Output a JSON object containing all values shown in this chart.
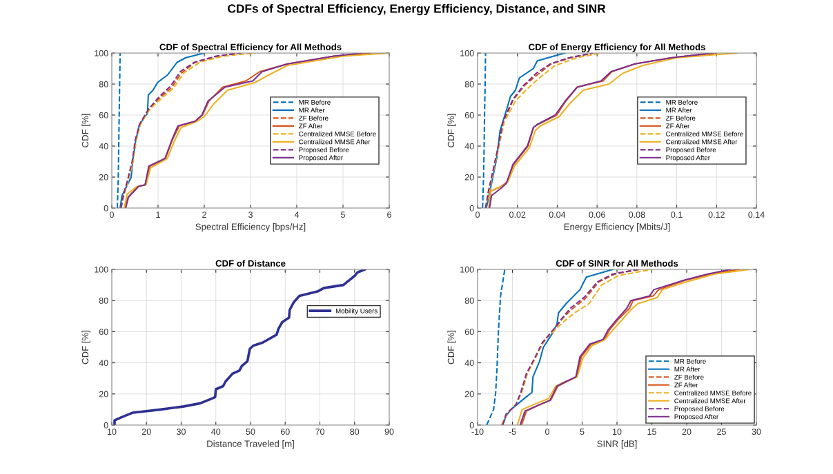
{
  "chart_data": [
    {
      "type": "line",
      "title": "CDF of Spectral Efficiency for All Methods",
      "xlabel": "Spectral Efficiency [bps/Hz]",
      "ylabel": "CDF [%]",
      "annotations": [
        "CDFs of Spectral Efficiency, Energy Efficiency, Distance, and SINR"
      ],
      "xlim": [
        0,
        6
      ],
      "xticks": [
        0,
        1,
        2,
        3,
        4,
        5,
        6
      ],
      "ylim": [
        0,
        100
      ],
      "yticks": [
        0,
        20,
        40,
        60,
        80,
        100
      ],
      "grid": true,
      "legend": "right",
      "series": [
        {
          "name": "MR Before",
          "color": "#0072bd",
          "line_style": "dashed",
          "x": [
            0.12,
            0.14,
            0.15,
            0.16,
            0.17,
            0.18
          ],
          "values": [
            0,
            20,
            40,
            60,
            80,
            100
          ]
        },
        {
          "name": "MR After",
          "color": "#0072bd",
          "line_style": "solid",
          "x": [
            0.18,
            0.22,
            0.32,
            0.42,
            0.45,
            0.52,
            0.6,
            0.77,
            0.79,
            0.89,
            0.99,
            1.21,
            1.31,
            1.41,
            1.6,
            2.0
          ],
          "values": [
            0,
            8,
            14,
            20,
            30,
            44,
            54,
            61,
            73,
            76,
            81,
            86,
            90,
            94,
            97,
            100
          ]
        },
        {
          "name": "ZF Before",
          "color": "#d95319",
          "line_style": "dashed",
          "x": [
            0.2,
            0.25,
            0.35,
            0.45,
            0.52,
            0.6,
            0.8,
            1.0,
            1.3,
            1.5,
            1.8,
            2.3,
            2.7
          ],
          "values": [
            0,
            8,
            18,
            30,
            44,
            54,
            64,
            70,
            78,
            87,
            94,
            98,
            100
          ]
        },
        {
          "name": "ZF After",
          "color": "#d95319",
          "line_style": "solid",
          "x": [
            0.28,
            0.35,
            0.57,
            0.72,
            0.82,
            1.16,
            1.31,
            1.46,
            1.81,
            1.96,
            2.1,
            2.4,
            2.9,
            3.2,
            3.8,
            4.8,
            5.6
          ],
          "values": [
            0,
            7,
            14,
            15,
            27,
            32,
            44,
            53,
            56,
            60,
            69,
            78,
            82,
            88,
            93,
            98,
            100
          ]
        },
        {
          "name": "Centralized MMSE Before",
          "color": "#edb120",
          "line_style": "dashed",
          "x": [
            0.2,
            0.26,
            0.36,
            0.46,
            0.53,
            0.62,
            0.83,
            1.05,
            1.35,
            1.55,
            1.9,
            2.4,
            3.1
          ],
          "values": [
            0,
            8,
            18,
            30,
            44,
            54,
            64,
            70,
            78,
            87,
            94,
            98,
            100
          ]
        },
        {
          "name": "Centralized MMSE After",
          "color": "#edb120",
          "line_style": "solid",
          "x": [
            0.27,
            0.33,
            0.55,
            0.74,
            0.84,
            1.2,
            1.35,
            1.5,
            1.85,
            2.0,
            2.2,
            2.5,
            3.1,
            3.4,
            3.8,
            5.0,
            6.0
          ],
          "values": [
            0,
            9,
            14,
            15,
            26,
            32,
            43,
            52,
            56,
            59,
            67,
            76,
            81,
            86,
            92,
            98,
            100
          ]
        },
        {
          "name": "Proposed Before",
          "color": "#7e2f8e",
          "line_style": "dashed",
          "x": [
            0.2,
            0.25,
            0.34,
            0.44,
            0.51,
            0.6,
            0.8,
            1.0,
            1.28,
            1.48,
            1.78,
            2.25,
            2.8
          ],
          "values": [
            0,
            8,
            18,
            30,
            44,
            54,
            64,
            71,
            79,
            88,
            94,
            98,
            100
          ]
        },
        {
          "name": "Proposed After",
          "color": "#7e2f8e",
          "line_style": "solid",
          "x": [
            0.3,
            0.36,
            0.58,
            0.72,
            0.8,
            1.15,
            1.3,
            1.43,
            1.8,
            1.95,
            2.08,
            2.45,
            3.05,
            3.25,
            3.8,
            4.8,
            5.4
          ],
          "values": [
            0,
            7,
            14,
            15,
            27,
            32,
            44,
            53,
            56,
            60,
            69,
            78,
            82,
            88,
            93,
            98,
            100
          ]
        }
      ]
    },
    {
      "type": "line",
      "title": "CDF of Energy Efficiency for All Methods",
      "xlabel": "Energy Efficiency [Mbits/J]",
      "ylabel": "CDF [%]",
      "xlim": [
        0,
        0.14
      ],
      "xticks": [
        0,
        0.02,
        0.04,
        0.06,
        0.08,
        0.1,
        0.12,
        0.14
      ],
      "ylim": [
        0,
        100
      ],
      "yticks": [
        0,
        20,
        40,
        60,
        80,
        100
      ],
      "grid": true,
      "legend": "right",
      "series": [
        {
          "name": "MR Before",
          "color": "#0072bd",
          "line_style": "dashed",
          "x": [
            0.0025,
            0.003,
            0.0033,
            0.0035,
            0.0038,
            0.004
          ],
          "values": [
            0,
            20,
            40,
            60,
            80,
            100
          ]
        },
        {
          "name": "MR After",
          "color": "#0072bd",
          "line_style": "solid",
          "x": [
            0.0044,
            0.0067,
            0.0096,
            0.0113,
            0.0142,
            0.0165,
            0.019,
            0.021,
            0.028,
            0.03,
            0.0437
          ],
          "values": [
            0,
            14,
            32,
            50,
            62,
            72,
            76,
            84,
            90,
            95,
            100
          ]
        },
        {
          "name": "ZF Before",
          "color": "#d95319",
          "line_style": "dashed",
          "x": [
            0.004,
            0.0055,
            0.008,
            0.0105,
            0.013,
            0.018,
            0.0235,
            0.03,
            0.037,
            0.047,
            0.058
          ],
          "values": [
            0,
            10,
            25,
            40,
            56,
            70,
            79,
            86,
            93,
            97,
            100
          ]
        },
        {
          "name": "ZF After",
          "color": "#d95319",
          "line_style": "solid",
          "x": [
            0.0058,
            0.0067,
            0.012,
            0.0148,
            0.018,
            0.0253,
            0.0281,
            0.0304,
            0.0397,
            0.0443,
            0.05,
            0.063,
            0.0674,
            0.079,
            0.0975,
            0.12
          ],
          "values": [
            0,
            11,
            14,
            17,
            28,
            40,
            52,
            54,
            60,
            69,
            78,
            82,
            88,
            93,
            97,
            100
          ]
        },
        {
          "name": "Centralized MMSE Before",
          "color": "#edb120",
          "line_style": "dashed",
          "x": [
            0.004,
            0.0057,
            0.0082,
            0.0108,
            0.0135,
            0.019,
            0.025,
            0.032,
            0.039,
            0.05,
            0.062
          ],
          "values": [
            0,
            10,
            25,
            40,
            56,
            69,
            77,
            85,
            92,
            97,
            100
          ]
        },
        {
          "name": "Centralized MMSE After",
          "color": "#edb120",
          "line_style": "solid",
          "x": [
            0.0056,
            0.0065,
            0.0125,
            0.0152,
            0.0185,
            0.026,
            0.029,
            0.0315,
            0.041,
            0.046,
            0.053,
            0.066,
            0.073,
            0.083,
            0.1,
            0.13
          ],
          "values": [
            0,
            11,
            14,
            17,
            27,
            39,
            50,
            53,
            59,
            67,
            76,
            80,
            87,
            92,
            97,
            100
          ]
        },
        {
          "name": "Proposed Before",
          "color": "#7e2f8e",
          "line_style": "dashed",
          "x": [
            0.004,
            0.0053,
            0.0079,
            0.0104,
            0.0128,
            0.0177,
            0.023,
            0.0295,
            0.0365,
            0.046,
            0.058
          ],
          "values": [
            0,
            10,
            25,
            40,
            56,
            70,
            79,
            87,
            93,
            97,
            100
          ]
        },
        {
          "name": "Proposed After",
          "color": "#7e2f8e",
          "line_style": "solid",
          "x": [
            0.006,
            0.007,
            0.012,
            0.0145,
            0.0177,
            0.025,
            0.028,
            0.03,
            0.039,
            0.044,
            0.05,
            0.062,
            0.067,
            0.079,
            0.0975,
            0.118
          ],
          "values": [
            0,
            8,
            13,
            16,
            28,
            40,
            52,
            54,
            60,
            69,
            78,
            82,
            88,
            93,
            97,
            100
          ]
        }
      ]
    },
    {
      "type": "line",
      "title": "CDF of Distance",
      "xlabel": "Distance Traveled [m]",
      "ylabel": "CDF [%]",
      "xlim": [
        10,
        90
      ],
      "xticks": [
        10,
        20,
        30,
        40,
        50,
        60,
        70,
        80,
        90
      ],
      "ylim": [
        0,
        100
      ],
      "yticks": [
        0,
        20,
        40,
        60,
        80,
        100
      ],
      "grid": true,
      "legend": "top right",
      "series": [
        {
          "name": "Mobility Users",
          "color": "#2e3192",
          "line_style": "solid",
          "x": [
            10.8,
            10.8,
            12.8,
            16.1,
            24.1,
            30.8,
            35.5,
            38.8,
            39.8,
            40,
            42.1,
            42.8,
            44.8,
            46.8,
            47.5,
            49.1,
            49.8,
            50.8,
            53.5,
            57.5,
            58.1,
            59.1,
            61.1,
            61.3,
            62.5,
            64.1,
            69.5,
            71.1,
            76.8,
            80.1,
            80.8,
            83
          ],
          "values": [
            0,
            3,
            5,
            8,
            10,
            12,
            14,
            17,
            18,
            23,
            25,
            28,
            33,
            35,
            38,
            41,
            49,
            51,
            53,
            58,
            62,
            66,
            69,
            74,
            79,
            83,
            86,
            88,
            90,
            96,
            98,
            100
          ]
        }
      ]
    },
    {
      "type": "line",
      "title": "CDF of SINR for All Methods",
      "xlabel": "SINR [dB]",
      "ylabel": "CDF [%]",
      "xlim": [
        -10,
        30
      ],
      "xticks": [
        -10,
        -5,
        0,
        5,
        10,
        15,
        20,
        25,
        30
      ],
      "ylim": [
        0,
        100
      ],
      "yticks": [
        0,
        20,
        40,
        60,
        80,
        100
      ],
      "grid": true,
      "legend": "bottom right",
      "series": [
        {
          "name": "MR Before",
          "color": "#0072bd",
          "line_style": "dashed",
          "x": [
            -8.7,
            -7.7,
            -7.4,
            -7.2,
            -7.0,
            -6.7,
            -6.1
          ],
          "values": [
            0,
            10,
            21,
            38,
            61,
            83,
            100
          ]
        },
        {
          "name": "MR After",
          "color": "#0072bd",
          "line_style": "solid",
          "x": [
            -6.4,
            -5.9,
            -5.2,
            -3.6,
            -2.2,
            -2.05,
            -1.1,
            -0.56,
            0.6,
            1.4,
            1.6,
            2.7,
            4.7,
            5.6,
            9.4
          ],
          "values": [
            0,
            6,
            10,
            16,
            21,
            31,
            41,
            50,
            58,
            65,
            72,
            78,
            87,
            95,
            100
          ]
        },
        {
          "name": "ZF Before",
          "color": "#d95319",
          "line_style": "dashed",
          "x": [
            -6.5,
            -5.9,
            -4.5,
            -3.7,
            -2.9,
            -1.6,
            -0.6,
            1.1,
            2.1,
            3.4,
            5.4,
            7.4,
            9.7,
            13.3
          ],
          "values": [
            0,
            7,
            13,
            21,
            33,
            44,
            53,
            62,
            68,
            74,
            81,
            92,
            97,
            100
          ]
        },
        {
          "name": "ZF After",
          "color": "#d95319",
          "line_style": "solid",
          "x": [
            -3.7,
            -3.0,
            -1.1,
            0.5,
            1.5,
            2.8,
            4.2,
            4.9,
            6.3,
            8.2,
            8.9,
            10.2,
            11.8,
            12.3,
            15.2,
            16.0,
            19.8,
            23.5,
            27.5
          ],
          "values": [
            0,
            9,
            13,
            16,
            25,
            28,
            31,
            44,
            52,
            55,
            61,
            68,
            75,
            80,
            83,
            87,
            93,
            97,
            100
          ]
        },
        {
          "name": "Centralized MMSE Before",
          "color": "#edb120",
          "line_style": "dashed",
          "x": [
            -6.6,
            -5.8,
            -4.4,
            -3.6,
            -2.8,
            -1.5,
            -0.5,
            1.3,
            2.5,
            3.9,
            6.0,
            7.8,
            10.2,
            15
          ],
          "values": [
            0,
            7,
            14,
            22,
            34,
            45,
            54,
            62,
            67,
            72,
            78,
            90,
            96,
            100
          ]
        },
        {
          "name": "Centralized MMSE After",
          "color": "#edb120",
          "line_style": "solid",
          "x": [
            -4.3,
            -3.6,
            -1.5,
            0.2,
            1.2,
            2.6,
            4.3,
            5.1,
            6.4,
            8.3,
            9.2,
            10.6,
            12.0,
            13.0,
            15.8,
            16.5,
            20.0,
            24.0,
            29
          ],
          "values": [
            0,
            10,
            14,
            17,
            25,
            28,
            31,
            43,
            51,
            55,
            60,
            67,
            74,
            78,
            82,
            87,
            92,
            97,
            100
          ]
        },
        {
          "name": "Proposed Before",
          "color": "#7e2f8e",
          "line_style": "dashed",
          "x": [
            -6.4,
            -5.9,
            -4.5,
            -3.8,
            -3.0,
            -1.7,
            -0.7,
            1.0,
            2.0,
            3.3,
            5.3,
            7.2,
            9.4,
            13
          ],
          "values": [
            0,
            7,
            13,
            21,
            33,
            44,
            53,
            62,
            68,
            75,
            82,
            92,
            97,
            100
          ]
        },
        {
          "name": "Proposed After",
          "color": "#7e2f8e",
          "line_style": "solid",
          "x": [
            -3.9,
            -3.2,
            -1.2,
            0.4,
            1.4,
            2.7,
            4.1,
            4.7,
            6.1,
            8.0,
            8.7,
            10.0,
            11.4,
            12.0,
            14.7,
            15.3,
            19.6,
            23,
            26.3
          ],
          "values": [
            0,
            9,
            13,
            16,
            25,
            28,
            31,
            44,
            52,
            55,
            61,
            68,
            75,
            80,
            83,
            87,
            93,
            97,
            100
          ]
        }
      ]
    }
  ]
}
